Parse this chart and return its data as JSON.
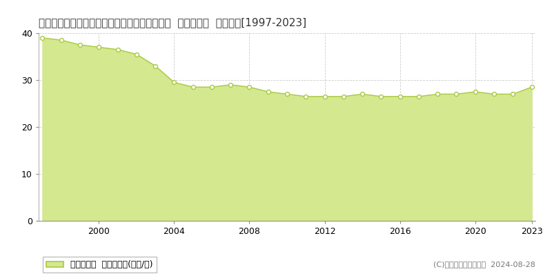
{
  "title": "愛知県知多郡東浦町大字緒川字西本坪１番３７  基準地価格  地価推移[1997-2023]",
  "years": [
    1997,
    1998,
    1999,
    2000,
    2001,
    2002,
    2003,
    2004,
    2005,
    2006,
    2007,
    2008,
    2009,
    2010,
    2011,
    2012,
    2013,
    2014,
    2015,
    2016,
    2017,
    2018,
    2019,
    2020,
    2021,
    2022,
    2023
  ],
  "values": [
    39.0,
    38.5,
    37.5,
    37.0,
    36.5,
    35.5,
    33.0,
    29.5,
    28.5,
    28.5,
    29.0,
    28.5,
    27.5,
    27.0,
    26.5,
    26.5,
    26.5,
    27.0,
    26.5,
    26.5,
    26.5,
    27.0,
    27.0,
    27.5,
    27.0,
    27.0,
    28.5
  ],
  "line_color": "#a8c840",
  "fill_color": "#d4e890",
  "marker_face_color": "white",
  "marker_edge_color": "#a8c840",
  "background_color": "#ffffff",
  "plot_bg_color": "#f5f5f5",
  "grid_color": "#cccccc",
  "ylim": [
    0,
    40
  ],
  "yticks": [
    0,
    10,
    20,
    30,
    40
  ],
  "xticks": [
    2000,
    2004,
    2008,
    2012,
    2016,
    2020,
    2023
  ],
  "legend_label": "基準地価格  平均坪単価(万円/坪)",
  "copyright_text": "(C)土地価格ドットコム  2024-08-28",
  "title_fontsize": 11,
  "tick_fontsize": 9,
  "legend_fontsize": 9,
  "copyright_fontsize": 8
}
